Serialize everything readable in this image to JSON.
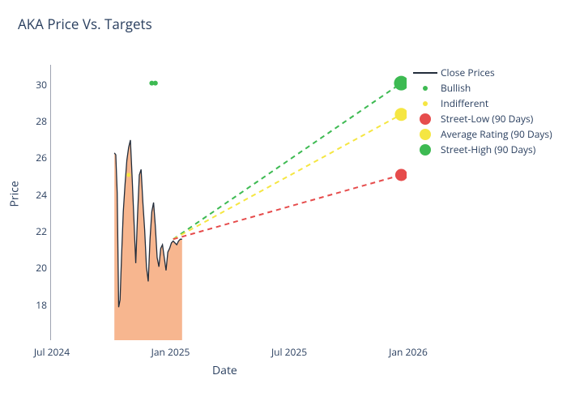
{
  "title": "AKA Price Vs. Targets",
  "title_fontsize": 17,
  "title_color": "#2a3f5f",
  "background_color": "#ffffff",
  "y_axis": {
    "label": "Price",
    "ticks": [
      18,
      20,
      22,
      24,
      26,
      28,
      30
    ],
    "ylim": [
      16,
      31
    ],
    "label_fontsize": 14,
    "tick_fontsize": 12,
    "color": "#2a3f5f",
    "zeroline_color": "#3c4763"
  },
  "x_axis": {
    "label": "Date",
    "ticks": [
      "Jul 2024",
      "Jan 2025",
      "Jul 2025",
      "Jan 2026"
    ],
    "tick_positions": [
      0,
      0.333,
      0.666,
      1.0
    ],
    "label_fontsize": 14,
    "tick_fontsize": 12,
    "color": "#2a3f5f"
  },
  "close_prices": {
    "color": "#232d3b",
    "line_width": 1.3,
    "fill_color": "#f6a97b",
    "fill_opacity": 0.85,
    "x_start": 0.18,
    "x_end": 0.37,
    "data": [
      {
        "x": 0.18,
        "y": 26.2
      },
      {
        "x": 0.184,
        "y": 26.1
      },
      {
        "x": 0.188,
        "y": 24.0
      },
      {
        "x": 0.192,
        "y": 17.8
      },
      {
        "x": 0.196,
        "y": 18.2
      },
      {
        "x": 0.2,
        "y": 20.5
      },
      {
        "x": 0.205,
        "y": 23.0
      },
      {
        "x": 0.21,
        "y": 24.5
      },
      {
        "x": 0.215,
        "y": 25.8
      },
      {
        "x": 0.22,
        "y": 26.5
      },
      {
        "x": 0.225,
        "y": 26.9
      },
      {
        "x": 0.23,
        "y": 24.8
      },
      {
        "x": 0.235,
        "y": 22.5
      },
      {
        "x": 0.24,
        "y": 20.2
      },
      {
        "x": 0.245,
        "y": 22.8
      },
      {
        "x": 0.25,
        "y": 25.0
      },
      {
        "x": 0.255,
        "y": 25.3
      },
      {
        "x": 0.26,
        "y": 23.5
      },
      {
        "x": 0.265,
        "y": 22.0
      },
      {
        "x": 0.27,
        "y": 20.0
      },
      {
        "x": 0.275,
        "y": 19.2
      },
      {
        "x": 0.28,
        "y": 21.5
      },
      {
        "x": 0.285,
        "y": 23.0
      },
      {
        "x": 0.29,
        "y": 23.5
      },
      {
        "x": 0.295,
        "y": 22.2
      },
      {
        "x": 0.3,
        "y": 20.5
      },
      {
        "x": 0.305,
        "y": 20.0
      },
      {
        "x": 0.31,
        "y": 21.0
      },
      {
        "x": 0.315,
        "y": 21.2
      },
      {
        "x": 0.32,
        "y": 20.5
      },
      {
        "x": 0.325,
        "y": 19.8
      },
      {
        "x": 0.33,
        "y": 20.8
      },
      {
        "x": 0.335,
        "y": 21.0
      },
      {
        "x": 0.34,
        "y": 21.3
      },
      {
        "x": 0.345,
        "y": 21.4
      },
      {
        "x": 0.35,
        "y": 21.3
      },
      {
        "x": 0.355,
        "y": 21.2
      },
      {
        "x": 0.36,
        "y": 21.4
      },
      {
        "x": 0.365,
        "y": 21.5
      },
      {
        "x": 0.37,
        "y": 21.5
      }
    ]
  },
  "bullish_markers": {
    "color": "#3dba52",
    "size": 6,
    "points": [
      {
        "x": 0.285,
        "y": 30.0
      },
      {
        "x": 0.295,
        "y": 30.0
      }
    ]
  },
  "indifferent_markers": {
    "color": "#f5e642",
    "size": 5,
    "points": [
      {
        "x": 0.22,
        "y": 25.0
      }
    ]
  },
  "target_lines": {
    "origin": {
      "x": 0.345,
      "y": 21.5
    },
    "dash": "6,5",
    "line_width": 2,
    "targets": [
      {
        "name": "street-high",
        "x": 0.985,
        "y": 30.0,
        "color": "#3dba52",
        "dot_size": 18
      },
      {
        "name": "average-rating",
        "x": 0.985,
        "y": 28.3,
        "color": "#f5e642",
        "dot_size": 16
      },
      {
        "name": "street-low",
        "x": 0.985,
        "y": 25.0,
        "color": "#e64c4c",
        "dot_size": 15
      }
    ]
  },
  "legend": [
    {
      "type": "line",
      "label": "Close Prices",
      "color": "#232d3b"
    },
    {
      "type": "dot-sm",
      "label": "Bullish",
      "color": "#3dba52"
    },
    {
      "type": "dot-sm",
      "label": "Indifferent",
      "color": "#f5e642"
    },
    {
      "type": "dot-lg",
      "label": "Street-Low (90 Days)",
      "color": "#e64c4c"
    },
    {
      "type": "dot-lg",
      "label": "Average Rating (90 Days)",
      "color": "#f5e642"
    },
    {
      "type": "dot-lg",
      "label": "Street-High (90 Days)",
      "color": "#3dba52"
    }
  ]
}
